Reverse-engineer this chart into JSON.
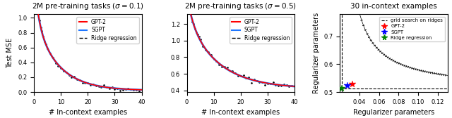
{
  "panel1_title": "2M pre-training tasks ($\\sigma = 0.1$)",
  "panel2_title": "2M pre-training tasks ($\\sigma = 0.5$)",
  "panel3_title": "30 in-context examples",
  "xlabel_left": "# In-context examples",
  "xlabel_right": "Regularizer parameters",
  "ylabel_left": "Test MSE",
  "ylabel_right": "Regularizer parameters",
  "colors": {
    "gpt2": "#ff0000",
    "sgpt": "#1f77ff",
    "ridge": "#000000"
  },
  "star_positions": {
    "gpt2": [
      0.033,
      0.527
    ],
    "sgpt": [
      0.028,
      0.522
    ],
    "ridge": [
      0.022,
      0.512
    ]
  },
  "panel1_ylim": [
    0.0,
    1.05
  ],
  "panel1_yticks": [
    0.0,
    0.2,
    0.4,
    0.6,
    0.8,
    1.0
  ],
  "panel2_ylim": [
    0.38,
    1.32
  ],
  "panel2_yticks": [
    0.4,
    0.6,
    0.8,
    1.0,
    1.2
  ],
  "panel3_xlim": [
    0.02,
    0.13
  ],
  "panel3_ylim": [
    0.505,
    0.78
  ],
  "panel3_xticks": [
    0.04,
    0.06,
    0.08,
    0.1,
    0.12
  ],
  "panel3_yticks": [
    0.5,
    0.6,
    0.7
  ],
  "panel3_hline": 0.513,
  "panel3_vline": 0.022,
  "curve_hyperbola_a": 0.006,
  "curve_hyperbola_b": 0.506,
  "curve_hyperbola_c": 0.0185
}
